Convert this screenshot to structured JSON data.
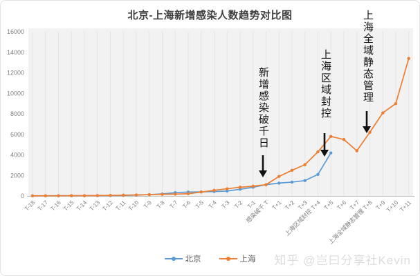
{
  "page": {
    "watermark": "知乎 @岂曰分享社Kevin"
  },
  "chart_data": {
    "type": "line",
    "title": "北京-上海新增感染人数趋势对比图",
    "xlabel": "",
    "ylabel": "",
    "ylim": [
      0,
      16000
    ],
    "y_ticks": [
      0,
      2000,
      4000,
      6000,
      8000,
      10000,
      12000,
      14000,
      16000
    ],
    "grid": "vertical",
    "legend_position": "bottom",
    "categories": [
      "T-18",
      "T-17",
      "T-16",
      "T-15",
      "T-14",
      "T-13",
      "T-12",
      "T-11",
      "T-10",
      "T-9",
      "T-8",
      "T-7",
      "T-6",
      "T-5",
      "T-4",
      "T-3",
      "T-2",
      "T-1",
      "感染破千 T",
      "T+1",
      "T+2",
      "T+3",
      "上海区域封控 T+4",
      "T+5",
      "T+6",
      "T+7",
      "上海全域静态管理 T+8",
      "T+9",
      "T+10",
      "T+11"
    ],
    "series": [
      {
        "name": "北京",
        "color": "#5b9bd5",
        "values": [
          10,
          12,
          15,
          18,
          22,
          28,
          35,
          50,
          80,
          130,
          200,
          320,
          380,
          400,
          430,
          480,
          650,
          850,
          1100,
          1250,
          1350,
          1500,
          2100,
          4200
        ]
      },
      {
        "name": "上海",
        "color": "#ed7d31",
        "values": [
          15,
          18,
          22,
          26,
          32,
          40,
          55,
          75,
          100,
          130,
          160,
          180,
          220,
          380,
          550,
          700,
          850,
          950,
          1100,
          1900,
          2500,
          3050,
          4300,
          5800,
          5500,
          4400,
          6200,
          8100,
          9000,
          13400
        ]
      }
    ],
    "annotations": [
      {
        "text": "新增感染破千日",
        "arrow": "↓",
        "target_category": "感染破千 T"
      },
      {
        "text": "上海区域封控",
        "arrow": "↓",
        "target_category": "上海区域封控 T+4"
      },
      {
        "text": "上海全域静态管理",
        "arrow": "↓",
        "target_category": "上海全域静态管理 T+8"
      }
    ]
  }
}
